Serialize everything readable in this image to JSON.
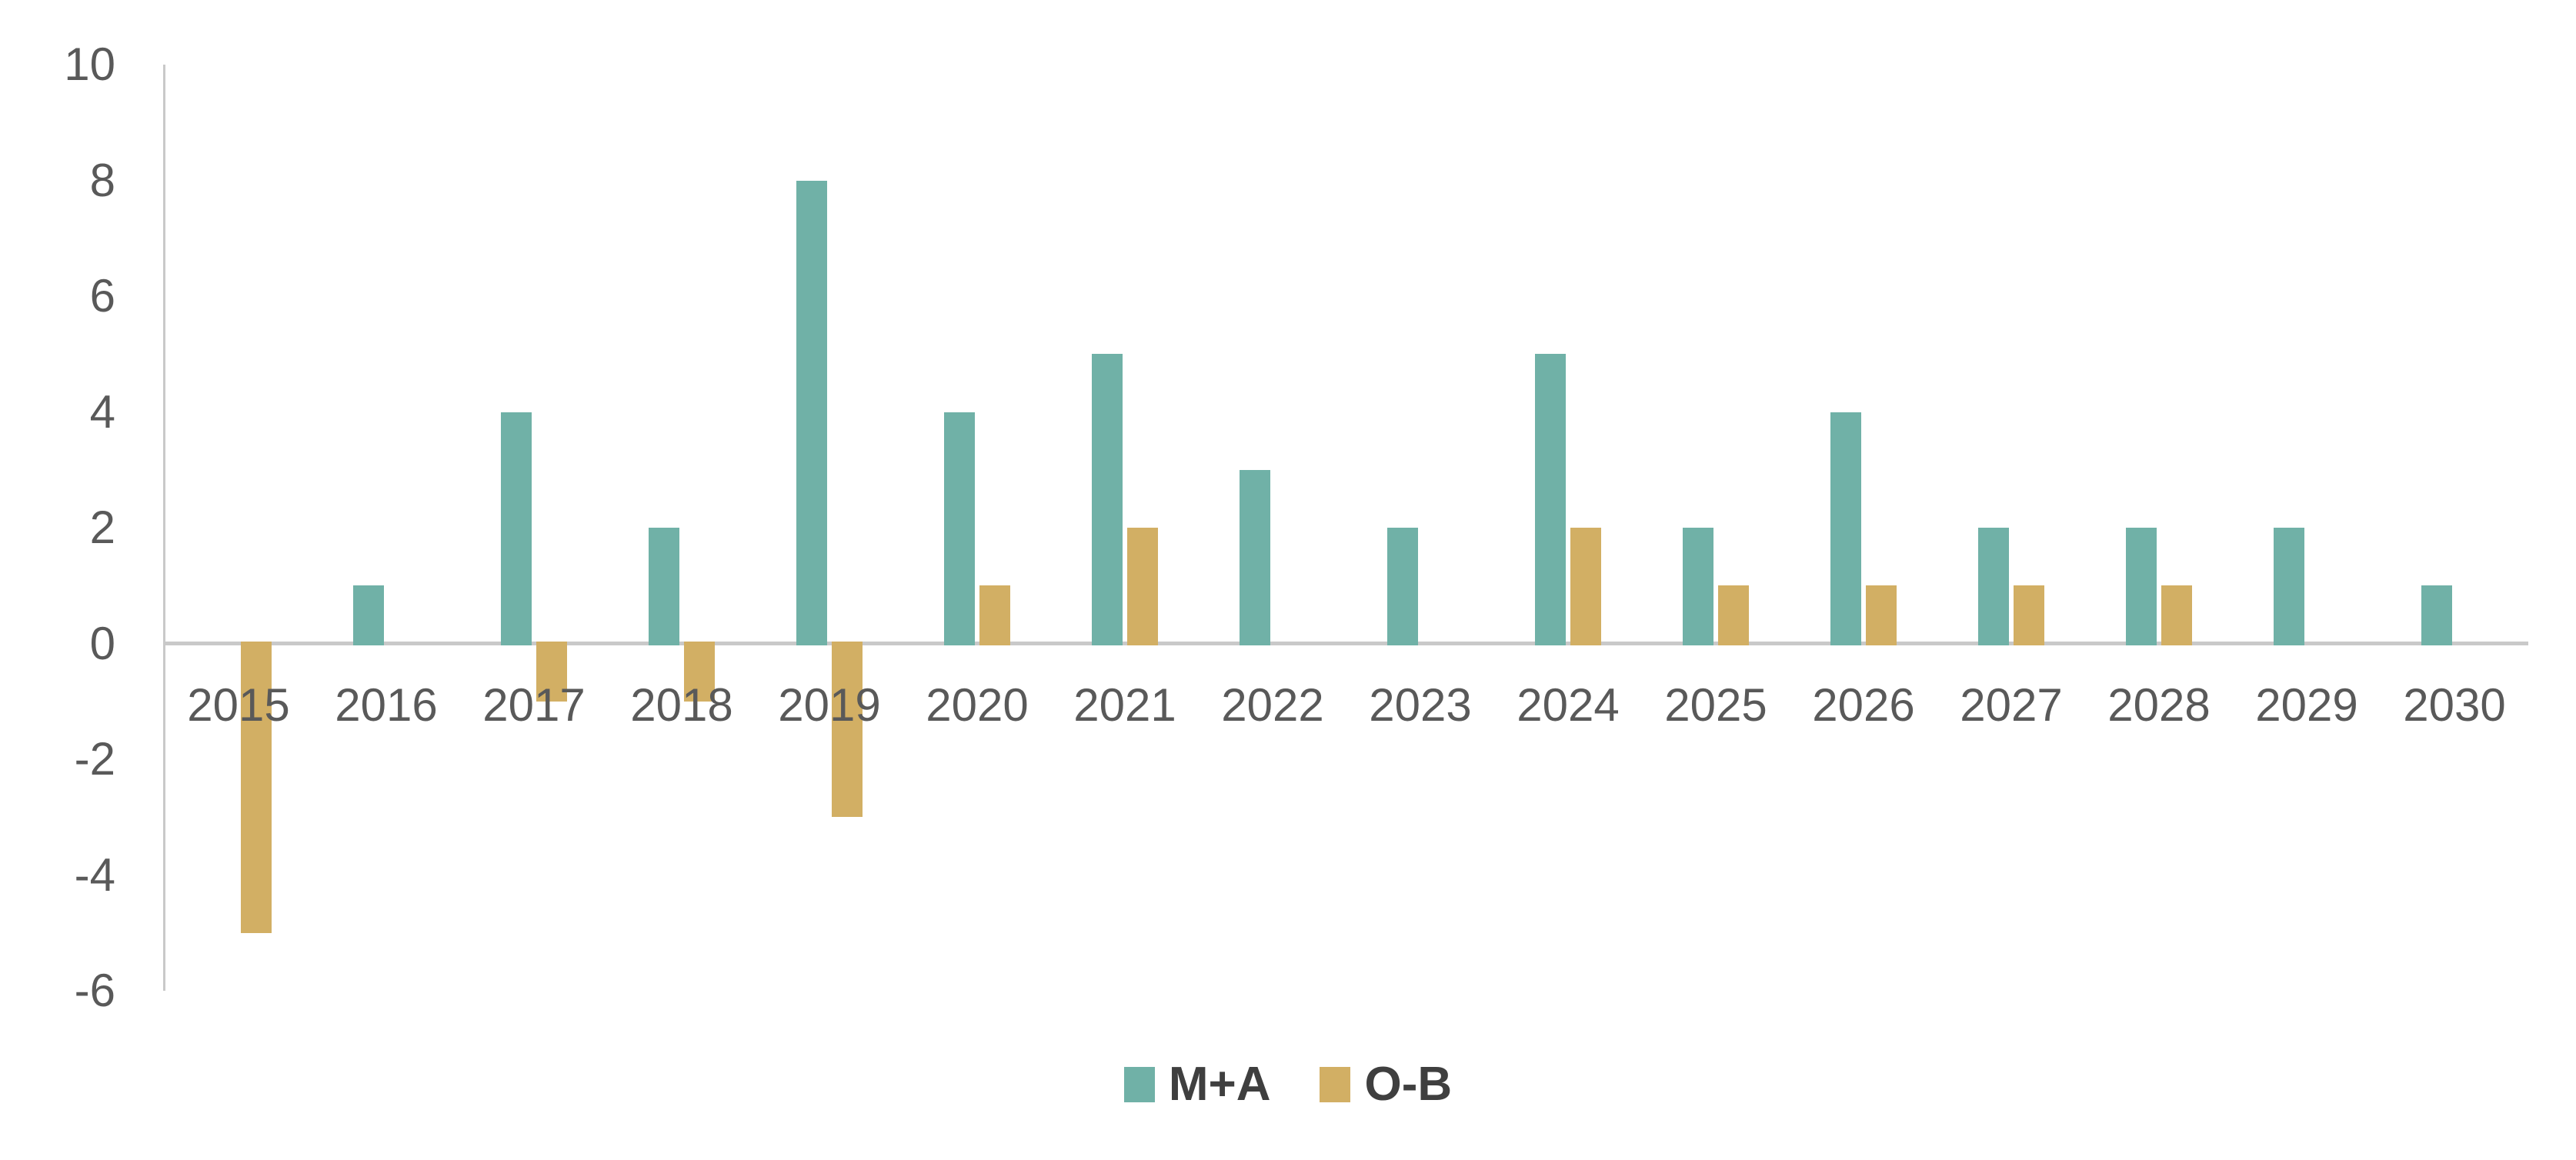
{
  "chart_data": {
    "type": "bar",
    "categories": [
      "2015",
      "2016",
      "2017",
      "2018",
      "2019",
      "2020",
      "2021",
      "2022",
      "2023",
      "2024",
      "2025",
      "2026",
      "2027",
      "2028",
      "2029",
      "2030"
    ],
    "series": [
      {
        "name": "M+A",
        "color": "#70B1A7",
        "values": [
          0,
          1,
          4,
          2,
          8,
          4,
          5,
          3,
          2,
          5,
          2,
          4,
          2,
          2,
          2,
          1
        ]
      },
      {
        "name": "O-B",
        "color": "#D2AF64",
        "values": [
          -5,
          0,
          -1,
          -1,
          -3,
          1,
          2,
          0,
          0,
          2,
          1,
          1,
          1,
          1,
          0,
          0
        ]
      }
    ],
    "y_ticks": [
      10,
      8,
      6,
      4,
      2,
      0,
      -2,
      -4,
      -6
    ],
    "ylim": [
      -6,
      10
    ],
    "grid": "zero-line-only",
    "legend_position": "bottom",
    "axis_line_color": "#c9c9c9",
    "tick_text_color": "#595959",
    "legend_text_color": "#3f3f3f",
    "background_color": "#ffffff"
  }
}
